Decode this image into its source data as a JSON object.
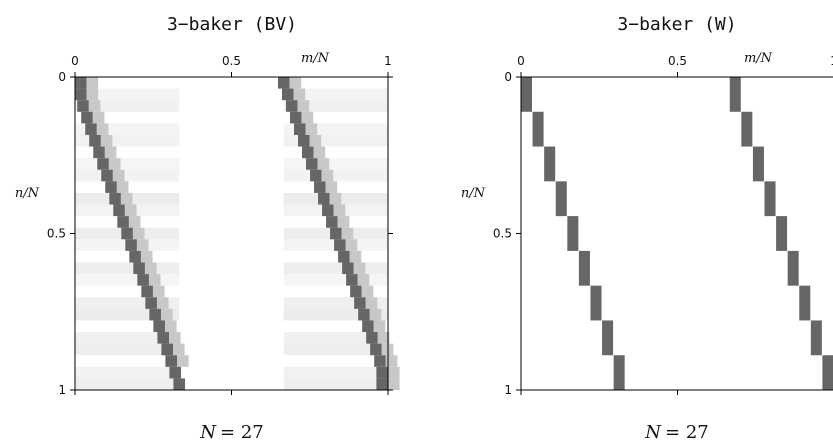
{
  "chart_data": [
    {
      "type": "heatmap",
      "title": "3−baker (BV)",
      "footer_label": "N",
      "footer_text": "= 27",
      "x_axis_label": "m/N",
      "y_axis_label": "n/N",
      "x_ticks": [
        "0",
        "0.5",
        "1"
      ],
      "y_ticks": [
        "0",
        "0.5",
        "1"
      ],
      "xlim": [
        0,
        1
      ],
      "ylim": [
        0,
        1
      ],
      "y_inverted": true,
      "grid_size": 27,
      "description_of_values": "gray level shows matrix element magnitude; dark diagonal bands",
      "diagonal_bands": [
        {
          "from_m": 0,
          "to_m": 0.333,
          "rows": 27
        },
        {
          "from_m": 0.667,
          "to_m": 1.0,
          "rows": 27
        }
      ],
      "faint_background_block_columns": [
        [
          0,
          0.333
        ],
        [
          0.667,
          1.0
        ]
      ]
    },
    {
      "type": "heatmap",
      "title": "3−baker (W)",
      "footer_label": "N",
      "footer_text": "= 27",
      "x_axis_label": "m/N",
      "y_axis_label": "n/N",
      "x_ticks": [
        "0",
        "0.5",
        "1"
      ],
      "y_ticks": [
        "0",
        "0.5",
        "1"
      ],
      "xlim": [
        0,
        1
      ],
      "ylim": [
        0,
        1
      ],
      "y_inverted": true,
      "grid_size": 27,
      "description_of_values": "sharp dark diagonal steps (permutation-like)",
      "diagonal_steps": [
        {
          "from_m": 0,
          "to_m": 0.333,
          "steps": 9
        },
        {
          "from_m": 0.667,
          "to_m": 1.0,
          "steps": 9
        }
      ]
    }
  ],
  "colors": {
    "dark_cell": "#666666",
    "mid_cell": "#8a8a8a",
    "light_cell": "#f0f0f0",
    "axis": "#000000"
  }
}
